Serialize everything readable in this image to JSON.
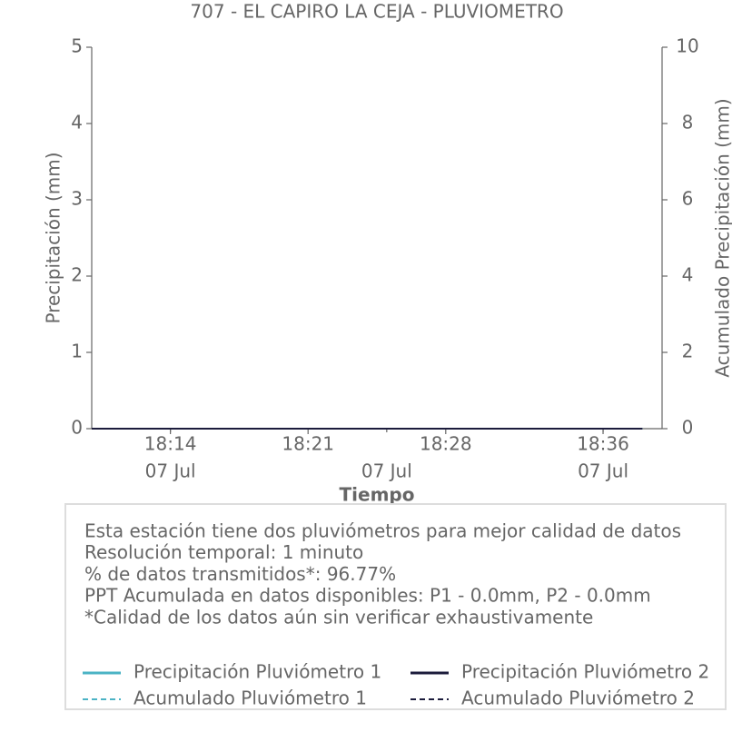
{
  "chart_data": {
    "type": "line",
    "title": "707 - EL CAPIRO LA CEJA - PLUVIOMETRO",
    "xlabel": "Tiempo",
    "ylabel": "Precipitación (mm)",
    "y2label": "Acumulado Precipitación (mm)",
    "x": [
      "18:10",
      "18:38"
    ],
    "xlim": [
      "18:10",
      "18:39"
    ],
    "xticks": [
      "18:14",
      "18:21",
      "18:28",
      "18:36"
    ],
    "xticks_minor": [
      {
        "value": "18:14",
        "label": "07 Jul"
      },
      {
        "value": "18:25",
        "label": "07 Jul"
      },
      {
        "value": "18:36",
        "label": "07 Jul"
      }
    ],
    "ylim": [
      0,
      5
    ],
    "yticks": [
      0,
      1,
      2,
      3,
      4,
      5
    ],
    "y2lim": [
      0,
      10
    ],
    "y2ticks": [
      0,
      2,
      4,
      6,
      8,
      10
    ],
    "series": [
      {
        "name": "Precipitación Pluviómetro 1",
        "color": "#4bb3c5",
        "linestyle": "solid",
        "values": [
          0,
          0
        ]
      },
      {
        "name": "Precipitación Pluviómetro 2",
        "color": "#1c1c3c",
        "linestyle": "solid",
        "values": [
          0,
          0
        ]
      },
      {
        "name": "Acumulado Pluviómetro 1",
        "color": "#4bb3c5",
        "linestyle": "dashed",
        "axis": "y2",
        "values": [
          0,
          0
        ]
      },
      {
        "name": "Acumulado Pluviómetro 2",
        "color": "#1c1c3c",
        "linestyle": "dashed",
        "axis": "y2",
        "values": [
          0,
          0
        ]
      }
    ],
    "notes": [
      "Esta estación tiene dos pluviómetros para mejor calidad de datos",
      "Resolución temporal: 1 minuto",
      "% de datos transmitidos*: 96.77%",
      "PPT Acumulada en datos disponibles: P1 - 0.0mm, P2 - 0.0mm",
      "*Calidad de los datos aún sin verificar exhaustivamente"
    ]
  }
}
